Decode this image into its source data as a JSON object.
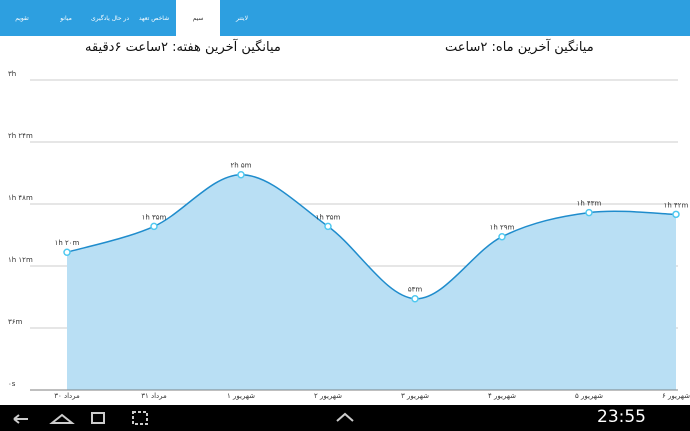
{
  "tabs": [
    "تقویم",
    "میانو",
    "در حال یادگیری",
    "شاخص تعهد",
    "سیم",
    "لایتنر"
  ],
  "header": {
    "week_average": "میانگین آخرین هفته: ۲ساعت  ۶دقیقه",
    "month_average": "میانگین آخرین ماه: ۲ساعت"
  },
  "chart_data": {
    "type": "area",
    "categories": [
      "۳۰ مرداد",
      "۳۱ مرداد",
      "۱ شهریور",
      "۲ شهریور",
      "۳ شهریور",
      "۴ شهریور",
      "۵ شهریور",
      "۶ شهریور"
    ],
    "values": [
      80,
      95,
      125,
      95,
      53,
      89,
      103,
      102
    ],
    "value_labels": [
      "۱h ۲۰m",
      "۱h ۳۵m",
      "۲h ۵m",
      "۱h ۳۵m",
      "۵۳m",
      "۱h ۲۹m",
      "۱h ۴۳m",
      "۱h ۴۲m"
    ],
    "color": "#1f8ccc",
    "fill": "#b9dff4",
    "ylim": [
      0,
      180
    ],
    "yticks": [
      {
        "value": 0,
        "label": "۰s"
      },
      {
        "value": 36,
        "label": "۳۶m"
      },
      {
        "value": 72,
        "label": "۱h ۱۲m"
      },
      {
        "value": 108,
        "label": "۱h ۴۸m"
      },
      {
        "value": 144,
        "label": "۲h ۲۴m"
      },
      {
        "value": 180,
        "label": "۳h"
      }
    ],
    "grid": true
  },
  "status_bar": {
    "time": "23:55"
  }
}
